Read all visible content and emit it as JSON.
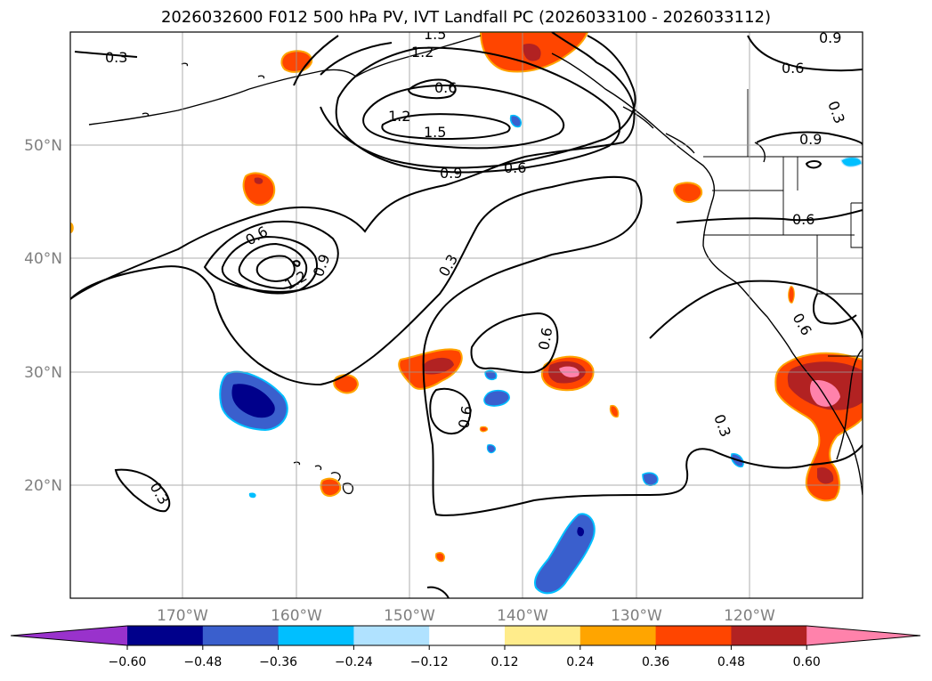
{
  "title": "2026032600 F012 500 hPa PV, IVT Landfall PC (2026033100 - 2026033112)",
  "map": {
    "lat_ticks": [
      "50°N",
      "40°N",
      "30°N",
      "20°N"
    ],
    "lon_ticks": [
      "170°W",
      "160°W",
      "150°W",
      "140°W",
      "130°W",
      "120°W"
    ],
    "gridlines": true,
    "contour_variable": "500 hPa PV",
    "contour_labels": [
      "0.3",
      "1.5",
      "1.2",
      "0.6",
      "0.9",
      "0.6",
      "0.3",
      "1.2",
      "1.5",
      "0.9",
      "0.6",
      "0.9",
      "0.6",
      "0.6",
      "0.9",
      "1.2",
      "0.3",
      "0.6",
      "0.6",
      "0.3",
      "0.6",
      "0.3",
      "0.3"
    ]
  },
  "colorbar": {
    "ticks": [
      "−0.60",
      "−0.48",
      "−0.36",
      "−0.24",
      "−0.12",
      "0.12",
      "0.24",
      "0.36",
      "0.48",
      "0.60"
    ],
    "colors": [
      "#9932cc",
      "#00008b",
      "#3a5fcd",
      "#00bfff",
      "#b0e2ff",
      "#ffffff",
      "#ffec8b",
      "#ffa500",
      "#ff4500",
      "#b22222",
      "#ff82ab"
    ],
    "extend": "both"
  }
}
